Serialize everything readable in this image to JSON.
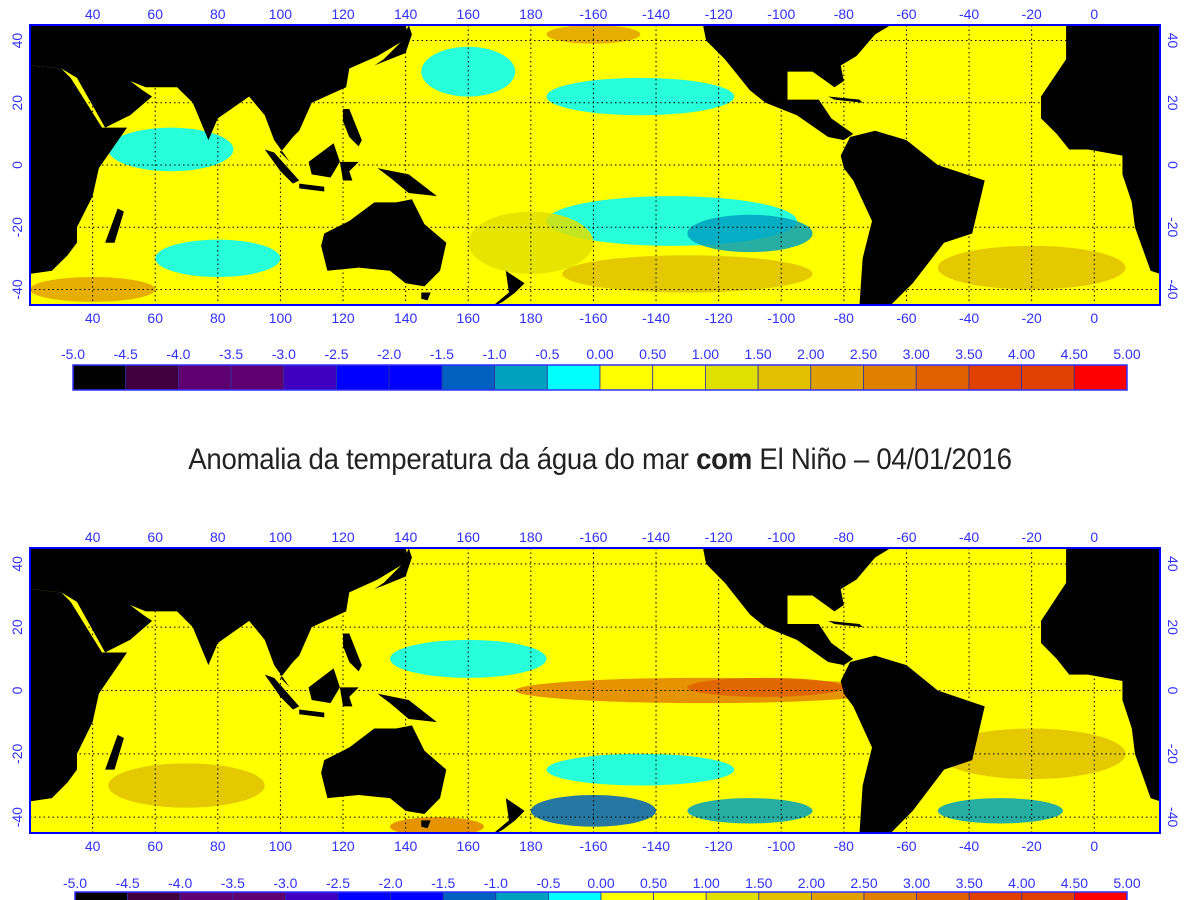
{
  "caption": {
    "prefix": "Anomalia da temperatura da água do mar ",
    "bold": "com",
    "suffix": " El Niño – 04/01/2016"
  },
  "axes": {
    "lon_ticks": [
      40,
      60,
      80,
      100,
      120,
      140,
      160,
      180,
      -160,
      -140,
      -120,
      -100,
      -80,
      -60,
      -40,
      -20,
      0
    ],
    "lat_ticks": [
      40,
      20,
      0,
      -20,
      -40
    ],
    "lon_range": [
      20,
      381
    ],
    "lat_range": [
      -45,
      45
    ],
    "grid": true,
    "land_color": "#000000",
    "frame_color": "#0000ff"
  },
  "colorbar": {
    "labels": [
      "-5.0",
      "-4.5",
      "-4.0",
      "-3.5",
      "-3.0",
      "-2.5",
      "-2.0",
      "-1.5",
      "-1.0",
      "-0.5",
      "0.00",
      "0.50",
      "1.00",
      "1.50",
      "2.00",
      "2.50",
      "3.00",
      "3.50",
      "4.00",
      "4.50",
      "5.00"
    ],
    "colors": [
      "#000000",
      "#400040",
      "#600070",
      "#600070",
      "#4000c0",
      "#0000ff",
      "#0000ff",
      "#0060c0",
      "#00a0c0",
      "#00ffff",
      "#ffff00",
      "#ffff00",
      "#e0e000",
      "#e0c000",
      "#e0a000",
      "#e08000",
      "#e06000",
      "#e04000",
      "#e04000",
      "#ff0000"
    ]
  },
  "maps": [
    {
      "name": "map-top",
      "base_anomaly": 0.5,
      "features": [
        {
          "lon": 225,
          "lat": -18,
          "rx": 40,
          "ry": 8,
          "anomaly": -0.3
        },
        {
          "lon": 250,
          "lat": -22,
          "rx": 20,
          "ry": 6,
          "anomaly": -0.7
        },
        {
          "lon": 215,
          "lat": 22,
          "rx": 30,
          "ry": 6,
          "anomaly": -0.3
        },
        {
          "lon": 160,
          "lat": 30,
          "rx": 15,
          "ry": 8,
          "anomaly": -0.3
        },
        {
          "lon": 65,
          "lat": 5,
          "rx": 20,
          "ry": 7,
          "anomaly": -0.3
        },
        {
          "lon": 80,
          "lat": -30,
          "rx": 20,
          "ry": 6,
          "anomaly": -0.3
        },
        {
          "lon": 230,
          "lat": -35,
          "rx": 40,
          "ry": 6,
          "anomaly": 1.8
        },
        {
          "lon": 340,
          "lat": -33,
          "rx": 30,
          "ry": 7,
          "anomaly": 1.8
        },
        {
          "lon": 40,
          "lat": -40,
          "rx": 20,
          "ry": 4,
          "anomaly": 2.2
        },
        {
          "lon": 200,
          "lat": 42,
          "rx": 15,
          "ry": 3,
          "anomaly": 2.0
        },
        {
          "lon": 180,
          "lat": -25,
          "rx": 20,
          "ry": 10,
          "anomaly": 1.4
        }
      ]
    },
    {
      "name": "map-bottom",
      "base_anomaly": 0.6,
      "features": [
        {
          "lon": 235,
          "lat": 0,
          "rx": 60,
          "ry": 4,
          "anomaly": 2.5
        },
        {
          "lon": 255,
          "lat": 1,
          "rx": 25,
          "ry": 3,
          "anomaly": 3.2
        },
        {
          "lon": 160,
          "lat": 10,
          "rx": 25,
          "ry": 6,
          "anomaly": -0.3
        },
        {
          "lon": 215,
          "lat": -25,
          "rx": 30,
          "ry": 5,
          "anomaly": -0.3
        },
        {
          "lon": 200,
          "lat": -38,
          "rx": 20,
          "ry": 5,
          "anomaly": -1.5
        },
        {
          "lon": 250,
          "lat": -38,
          "rx": 20,
          "ry": 4,
          "anomaly": -0.7
        },
        {
          "lon": 330,
          "lat": -38,
          "rx": 20,
          "ry": 4,
          "anomaly": -0.7
        },
        {
          "lon": 70,
          "lat": -30,
          "rx": 25,
          "ry": 7,
          "anomaly": 1.8
        },
        {
          "lon": 340,
          "lat": -20,
          "rx": 30,
          "ry": 8,
          "anomaly": 1.8
        },
        {
          "lon": 150,
          "lat": -43,
          "rx": 15,
          "ry": 3,
          "anomaly": 2.5
        }
      ]
    }
  ]
}
